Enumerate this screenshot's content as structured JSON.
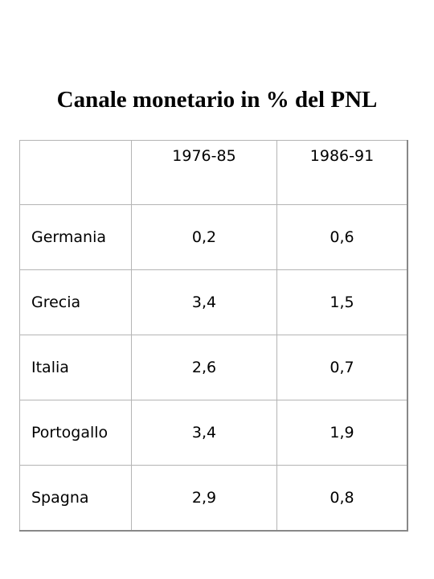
{
  "title": "Canale monetario in % del PNL",
  "table": {
    "header": [
      "1976-85",
      "1986-91"
    ],
    "rows": [
      [
        "Germania",
        "0,2",
        "0,6"
      ],
      [
        "Grecia",
        "3,4",
        "1,5"
      ],
      [
        "Italia",
        "2,6",
        "0,7"
      ],
      [
        "Portogallo",
        "3,4",
        "1,9"
      ],
      [
        "Spagna",
        "2,9",
        "0,8"
      ]
    ]
  }
}
